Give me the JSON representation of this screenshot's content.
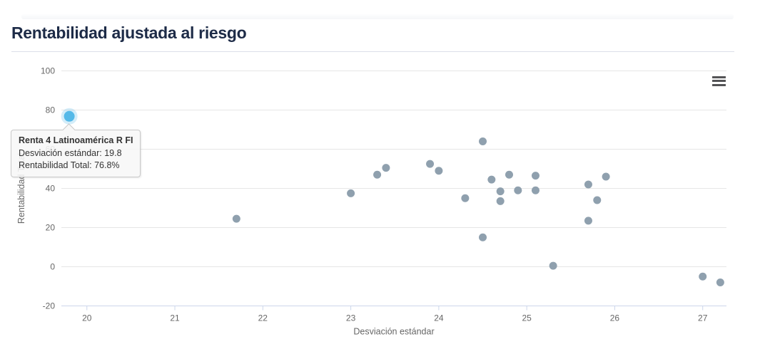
{
  "header": {
    "title": "Rentabilidad ajustada al riesgo"
  },
  "icons": {
    "context_menu": "hamburger-icon"
  },
  "tooltip": {
    "title": "Renta 4 Latinoamérica R FI",
    "line_std": "Desviación estándar: 19.8",
    "line_ret": "Rentabilidad Total: 76.8%"
  },
  "colors": {
    "title_text": "#1d2b47",
    "divider": "#dbdfe9",
    "gridline": "#e6e6e6",
    "axis_line": "#ccd6eb",
    "axis_label": "#666666",
    "point_default": "#8fa0ae",
    "point_highlight": "#54b9e8",
    "tooltip_border": "#c9c9c9",
    "menu_icon": "#545456"
  },
  "chart_data": {
    "type": "scatter",
    "title": "Rentabilidad ajustada al riesgo",
    "xlabel": "Desviación estándar",
    "ylabel": "Rentabilidad Total",
    "xlim": [
      19.71,
      27.27
    ],
    "ylim": [
      -20,
      100
    ],
    "x_ticks": [
      20,
      21,
      22,
      23,
      24,
      25,
      26,
      27
    ],
    "y_ticks": [
      -20,
      0,
      20,
      40,
      60,
      80,
      100
    ],
    "grid": "horizontal-only",
    "legend": "none",
    "series": [
      {
        "name": "",
        "color": "#8fa0ae",
        "marker_radius": 5.5,
        "highlighted": false,
        "points": [
          [
            21.7,
            24.5
          ],
          [
            23.0,
            37.5
          ],
          [
            23.3,
            47.0
          ],
          [
            23.4,
            50.5
          ],
          [
            23.9,
            52.5
          ],
          [
            24.0,
            49.0
          ],
          [
            24.3,
            35.0
          ],
          [
            24.5,
            64.0
          ],
          [
            24.5,
            15.0
          ],
          [
            24.6,
            44.5
          ],
          [
            24.7,
            38.5
          ],
          [
            24.7,
            33.5
          ],
          [
            24.8,
            47.0
          ],
          [
            24.9,
            39.0
          ],
          [
            25.1,
            46.5
          ],
          [
            25.1,
            39.0
          ],
          [
            25.3,
            0.5
          ],
          [
            25.7,
            42.0
          ],
          [
            25.7,
            23.5
          ],
          [
            25.8,
            34.0
          ],
          [
            25.9,
            46.0
          ],
          [
            27.0,
            -5.0
          ],
          [
            27.2,
            -8.0
          ]
        ]
      },
      {
        "name": "Renta 4 Latinoamérica R FI",
        "color": "#54b9e8",
        "marker_radius": 7.5,
        "highlighted": true,
        "points": [
          [
            19.8,
            76.8
          ]
        ]
      }
    ]
  }
}
